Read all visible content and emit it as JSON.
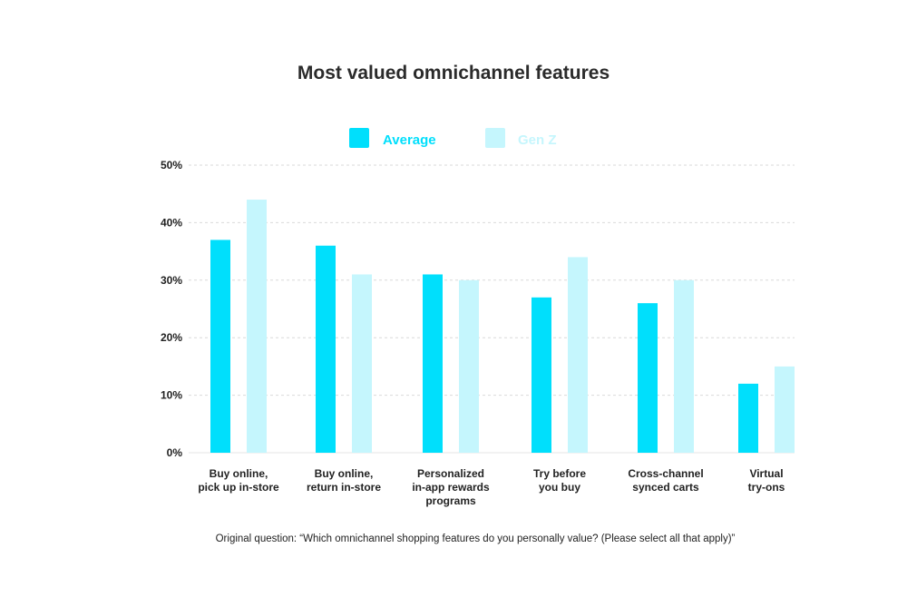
{
  "chart_data": {
    "type": "bar",
    "title": "Most valued omnichannel features",
    "categories": [
      [
        "Buy online,",
        "pick up in-store"
      ],
      [
        "Buy online,",
        "return in-store"
      ],
      [
        "Personalized",
        "in-app rewards",
        "programs"
      ],
      [
        "Try before",
        "you buy"
      ],
      [
        "Cross-channel",
        "synced carts"
      ],
      [
        "Virtual",
        "try-ons"
      ]
    ],
    "series": [
      {
        "name": "Average",
        "color": "#00DFFC",
        "values": [
          37,
          36,
          31,
          27,
          26,
          12
        ]
      },
      {
        "name": "Gen Z",
        "color": "#C5F6FD",
        "values": [
          44,
          31,
          30,
          34,
          30,
          15
        ]
      }
    ],
    "ylim": [
      0,
      50
    ],
    "yticks": [
      "0%",
      "10%",
      "20%",
      "30%",
      "40%",
      "50%"
    ],
    "ytick_values": [
      0,
      10,
      20,
      30,
      40,
      50
    ],
    "grid": true,
    "legend_position": "top-center",
    "xlabel": "",
    "ylabel": ""
  },
  "footnote": "Original question: “Which omnichannel shopping features do you personally value? (Please select all that apply)”"
}
